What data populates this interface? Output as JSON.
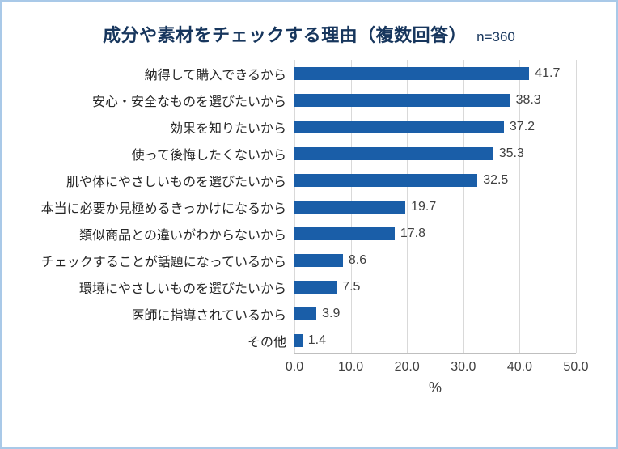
{
  "header": {
    "title": "成分や素材をチェックする理由（複数回答）",
    "n_label": "n=360"
  },
  "colors": {
    "bar": "#1A5EA8",
    "title_text": "#17365D",
    "grid": "#D9D9D9",
    "axis_line": "#BFBFBF",
    "panel_border": "#A9C9E8",
    "label_text": "#404040"
  },
  "chart_data": {
    "type": "bar",
    "orientation": "horizontal",
    "title": "成分や素材をチェックする理由（複数回答）",
    "subtitle": "n=360",
    "xlabel": "%",
    "xlim": [
      0,
      50
    ],
    "tick_values": [
      0,
      10,
      20,
      30,
      40,
      50
    ],
    "grid": true,
    "categories": [
      "納得して購入できるから",
      "安心・安全なものを選びたいから",
      "効果を知りたいから",
      "使って後悔したくないから",
      "肌や体にやさしいものを選びたいから",
      "本当に必要か見極めるきっかけになるから",
      "類似商品との違いがわからないから",
      "チェックすることが話題になっているから",
      "環境にやさしいものを選びたいから",
      "医師に指導されているから",
      "その他"
    ],
    "values": [
      41.7,
      38.3,
      37.2,
      35.3,
      32.5,
      19.7,
      17.8,
      8.6,
      7.5,
      3.9,
      1.4
    ]
  }
}
